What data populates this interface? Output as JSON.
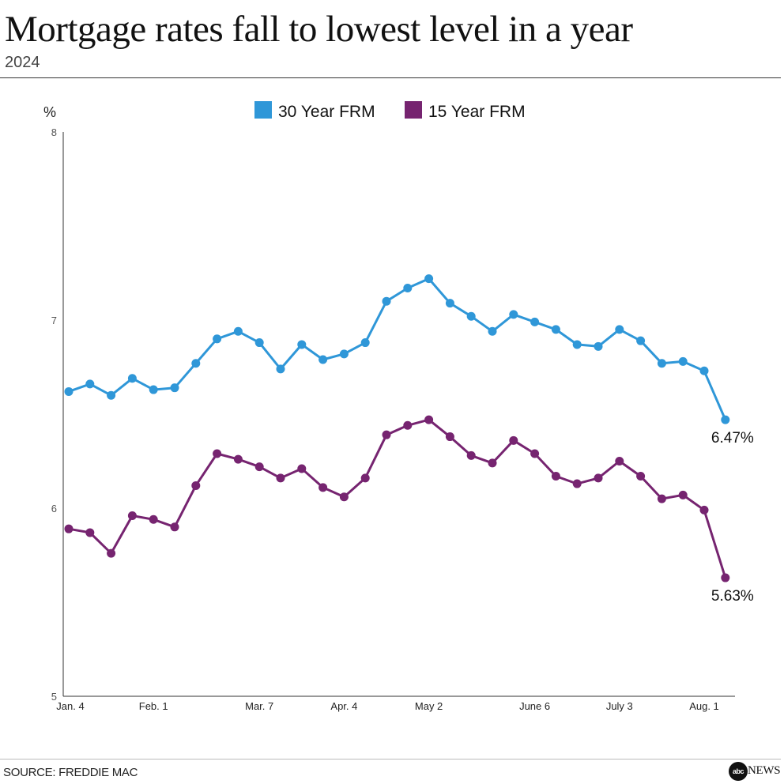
{
  "title": "Mortgage rates fall to lowest level in a year",
  "subtitle": "2024",
  "source": "SOURCE: FREDDIE MAC",
  "brand": {
    "logo_text": "abc",
    "name": "NEWS"
  },
  "colors": {
    "series_30": "#2f97d8",
    "series_15": "#762470",
    "axis": "#333333"
  },
  "chart_data": {
    "type": "line",
    "y_unit": "%",
    "ylim": [
      5,
      8
    ],
    "y_ticks": [
      5,
      6,
      7,
      8
    ],
    "grid": false,
    "legend_position": "top-center",
    "x_tick_labels": [
      {
        "index": 0,
        "label": "Jan. 4"
      },
      {
        "index": 4,
        "label": "Feb. 1"
      },
      {
        "index": 9,
        "label": "Mar. 7"
      },
      {
        "index": 13,
        "label": "Apr. 4"
      },
      {
        "index": 17,
        "label": "May 2"
      },
      {
        "index": 22,
        "label": "June 6"
      },
      {
        "index": 26,
        "label": "July 3"
      },
      {
        "index": 30,
        "label": "Aug. 1"
      }
    ],
    "series": [
      {
        "name": "30 Year FRM",
        "color": "#2f97d8",
        "values": [
          6.62,
          6.66,
          6.6,
          6.69,
          6.63,
          6.64,
          6.77,
          6.9,
          6.94,
          6.88,
          6.74,
          6.87,
          6.79,
          6.82,
          6.88,
          7.1,
          7.17,
          7.22,
          7.09,
          7.02,
          6.94,
          7.03,
          6.99,
          6.95,
          6.87,
          6.86,
          6.95,
          6.89,
          6.77,
          6.78,
          6.73,
          6.47
        ],
        "end_label": "6.47%"
      },
      {
        "name": "15 Year FRM",
        "color": "#762470",
        "values": [
          5.89,
          5.87,
          5.76,
          5.96,
          5.94,
          5.9,
          6.12,
          6.29,
          6.26,
          6.22,
          6.16,
          6.21,
          6.11,
          6.06,
          6.16,
          6.39,
          6.44,
          6.47,
          6.38,
          6.28,
          6.24,
          6.36,
          6.29,
          6.17,
          6.13,
          6.16,
          6.25,
          6.17,
          6.05,
          6.07,
          5.99,
          5.63
        ],
        "end_label": "5.63%"
      }
    ]
  }
}
